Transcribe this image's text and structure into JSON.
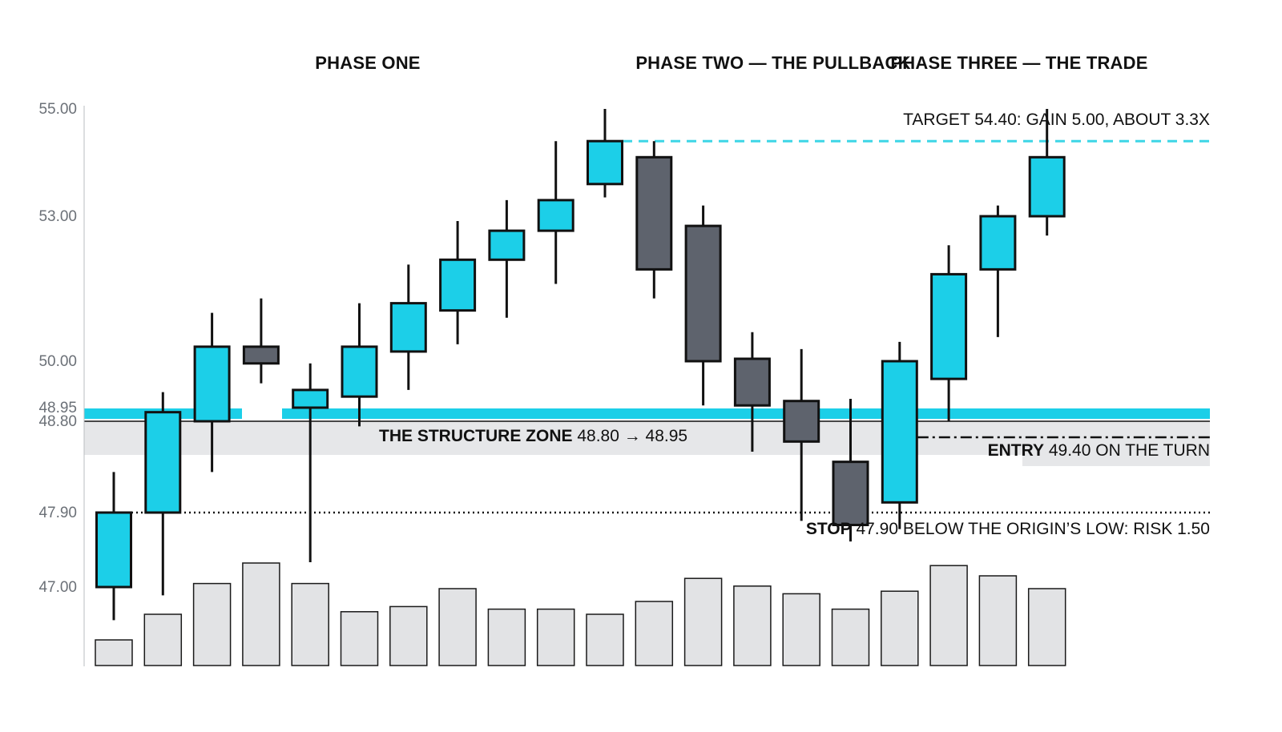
{
  "chart_data": {
    "type": "candlestick",
    "phases": [
      "PHASE ONE",
      "PHASE TWO — THE PULLBACK",
      "PHASE THREE — THE TRADE"
    ],
    "y_ticks": [
      "55.00",
      "53.00",
      "50.00",
      "48.95",
      "48.80",
      "47.90",
      "47.00"
    ],
    "candles": [
      {
        "open": 47.0,
        "high": 48.3,
        "low": 46.6,
        "close": 47.9,
        "dir": "up"
      },
      {
        "open": 47.9,
        "high": 49.3,
        "low": 46.9,
        "close": 48.9,
        "dir": "up"
      },
      {
        "open": 48.8,
        "high": 51.0,
        "low": 48.3,
        "close": 50.3,
        "dir": "up"
      },
      {
        "open": 50.3,
        "high": 51.3,
        "low": 49.5,
        "close": 49.95,
        "dir": "down"
      },
      {
        "open": 48.95,
        "high": 49.95,
        "low": 47.3,
        "close": 49.35,
        "dir": "up"
      },
      {
        "open": 49.2,
        "high": 51.2,
        "low": 48.75,
        "close": 50.3,
        "dir": "up"
      },
      {
        "open": 50.2,
        "high": 52.0,
        "low": 49.35,
        "close": 51.2,
        "dir": "up"
      },
      {
        "open": 51.05,
        "high": 52.9,
        "low": 50.35,
        "close": 52.1,
        "dir": "up"
      },
      {
        "open": 52.1,
        "high": 53.3,
        "low": 50.9,
        "close": 52.7,
        "dir": "up"
      },
      {
        "open": 52.7,
        "high": 54.4,
        "low": 51.6,
        "close": 53.3,
        "dir": "up"
      },
      {
        "open": 53.6,
        "high": 55.0,
        "low": 53.35,
        "close": 54.4,
        "dir": "up"
      },
      {
        "open": 54.1,
        "high": 54.4,
        "low": 51.3,
        "close": 51.9,
        "dir": "down"
      },
      {
        "open": 52.8,
        "high": 53.2,
        "low": 49.0,
        "close": 50.0,
        "dir": "down"
      },
      {
        "open": 50.05,
        "high": 50.6,
        "low": 48.5,
        "close": 49.0,
        "dir": "down"
      },
      {
        "open": 49.1,
        "high": 50.25,
        "low": 47.8,
        "close": 48.6,
        "dir": "down"
      },
      {
        "open": 48.4,
        "high": 49.15,
        "low": 47.55,
        "close": 47.75,
        "dir": "down"
      },
      {
        "open": 48.0,
        "high": 50.4,
        "low": 47.7,
        "close": 50.0,
        "dir": "up"
      },
      {
        "open": 49.6,
        "high": 52.4,
        "low": 48.8,
        "close": 51.8,
        "dir": "up"
      },
      {
        "open": 51.9,
        "high": 53.2,
        "low": 50.5,
        "close": 53.0,
        "dir": "up"
      },
      {
        "open": 53.0,
        "high": 55.0,
        "low": 52.6,
        "close": 54.1,
        "dir": "up"
      }
    ],
    "volume": [
      10,
      20,
      32,
      40,
      32,
      21,
      23,
      30,
      22,
      22,
      20,
      25,
      34,
      31,
      28,
      22,
      29,
      39,
      35,
      30
    ],
    "levels": {
      "target": 54.4,
      "structure_low": 48.8,
      "structure_high": 48.95,
      "entry": 49.4,
      "stop": 47.9
    },
    "annotations": {
      "target": "TARGET 54.40: GAIN 5.00, ABOUT 3.3X",
      "zone_strong": "THE STRUCTURE ZONE",
      "zone_rest": " 48.80 → 48.95",
      "entry_strong": "ENTRY",
      "entry_rest": " 49.40 ON THE TURN",
      "stop_strong": "STOP",
      "stop_rest": " 47.90 BELOW THE ORIGIN’S LOW: RISK 1.50"
    },
    "colors": {
      "up": "#1ccfe8",
      "down": "#5e636d",
      "band": "#1ccfe8",
      "zone": "#e6e7e9",
      "volume": "#e2e3e5",
      "target_line": "#3dd6e6"
    }
  }
}
